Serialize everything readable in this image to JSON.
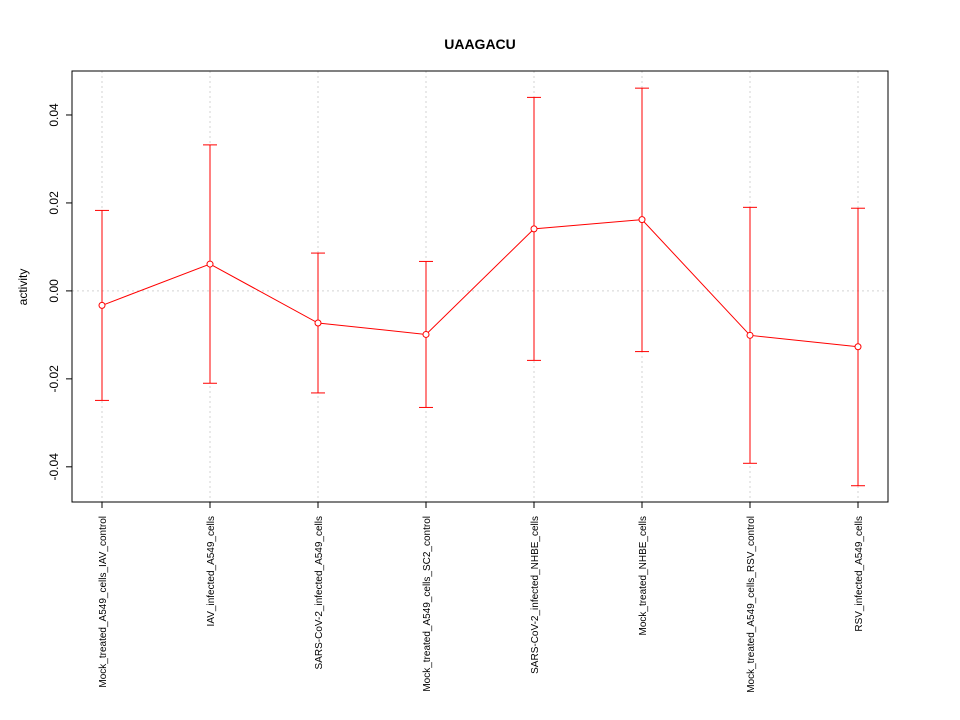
{
  "chart_data": {
    "type": "line",
    "title": "UAAGACU",
    "xlabel": "",
    "ylabel": "activity",
    "categories": [
      "Mock_treated_A549_cells_IAV_control",
      "IAV_infected_A549_cells",
      "SARS-CoV-2_infected_A549_cells",
      "Mock_treated_A549_cells_SC2_control",
      "SARS-CoV-2_infected_NHBE_cells",
      "Mock_treated_NHBE_cells",
      "Mock_treated_A549_cells_RSV_control",
      "RSV_infected_A549_cells"
    ],
    "values": [
      -0.0033,
      0.0061,
      -0.0073,
      -0.0099,
      0.0141,
      0.0162,
      -0.0101,
      -0.0127
    ],
    "error_low": [
      -0.0249,
      -0.021,
      -0.0232,
      -0.0265,
      -0.0158,
      -0.0138,
      -0.0392,
      -0.0443
    ],
    "error_high": [
      0.0183,
      0.0332,
      0.0086,
      0.0067,
      0.044,
      0.0461,
      0.019,
      0.0188
    ],
    "ylim": [
      -0.048,
      0.05
    ],
    "yticks": [
      -0.04,
      -0.02,
      0.0,
      0.02,
      0.04
    ],
    "ytick_labels": [
      "-0.04",
      "-0.02",
      "0.00",
      "0.02",
      "0.04"
    ],
    "grid": true,
    "reference_line": 0,
    "colors": {
      "series": "#ff0000",
      "grid": "#d3d3d3",
      "axis": "#000000"
    }
  }
}
